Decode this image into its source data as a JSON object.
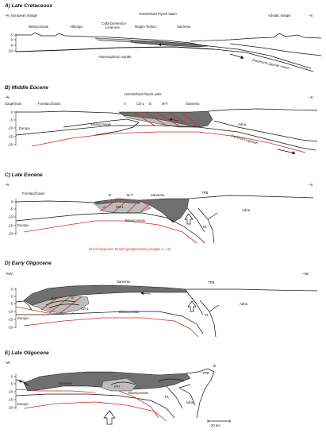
{
  "panels": [
    {
      "title": "A) Late Cretaceous",
      "labels": {
        "left_dir": "~N",
        "right_dir": "~S",
        "european_margin": "European margin",
        "briançonnais": "Briançonnais",
        "albenga": "Albenga",
        "colla_domenico": "Colla Domenico-\nLeverone",
        "moglio_testico": "Moglio-Testico",
        "sanremo": "Sanremo",
        "helminthoid_basin": "Helminthoid Flysch basin",
        "adriatic_margin": "Adriatic margin",
        "asthenospheric_mantle": "Astenospheric mantle",
        "piedmont_ligurian_ocean": "Piedmont-Ligurian ocean"
      },
      "ticks": [
        "5",
        "0",
        "-5",
        "-10"
      ]
    },
    {
      "title": "B) Middle Eocene",
      "labels": {
        "left_dir": "~N",
        "right_dir": "~S",
        "dauphinois": "Dauphinois",
        "foreland_basin": "Foreland basin",
        "helminthoid_units": "Helminthoid Flysch units",
        "a": "A",
        "cdl": "CD-L",
        "b": "B",
        "mt": "M-T",
        "sanremo": "Sanremo",
        "europe": "Europe",
        "briançonnais": "Briançonnais",
        "adria": "Adria",
        "piedmont_ligurian": "Piedmont-Ligurian"
      },
      "ticks": [
        "0",
        "-5",
        "-10",
        "-15",
        "-20"
      ]
    },
    {
      "title": "C) Late Eocene",
      "labels": {
        "left_dir": "~N",
        "right_dir": "~S",
        "foreland_basin": "Foreland basin",
        "b": "B",
        "mt": "M-T",
        "sanremo": "Sanremo",
        "tpb": "TPB",
        "a": "A",
        "cdl": "CD-L",
        "briançonnais": "Briançonnais",
        "europe": "Europe",
        "adria": "Adria",
        "pl": "PL",
        "sequence_note": "Out of sequence thrusts (progressively younger 1-->4)"
      },
      "ticks": [
        "0",
        "-5",
        "-10",
        "-15",
        "-20"
      ]
    },
    {
      "title": "D) Early Oligocene",
      "labels": {
        "left_dir": "~NW",
        "right_dir": "~SE",
        "mt": "M-T",
        "b": "B",
        "sanremo": "Sanremo",
        "tpb": "TPB",
        "cdl": "CD-L",
        "a": "A",
        "europe": "Europe",
        "briançonnais": "Briançonnais",
        "adria": "Adria",
        "pl": "PL"
      },
      "ticks": [
        "5",
        "0",
        "-5",
        "-10",
        "-15",
        "-20"
      ]
    },
    {
      "title": "E) Late Oligocene",
      "labels": {
        "left_dir": "~W",
        "right_dir": "~E",
        "sanremo": "Sanremo",
        "ifh": "IFH",
        "briançonnais": "Briançonnais",
        "tpb": "TPB",
        "europe": "Europe",
        "pl": "PL",
        "adria": "Adria",
        "scale": "20 km"
      },
      "ticks": [
        "0",
        "-5",
        "-10",
        "-15",
        "-20"
      ]
    }
  ]
}
